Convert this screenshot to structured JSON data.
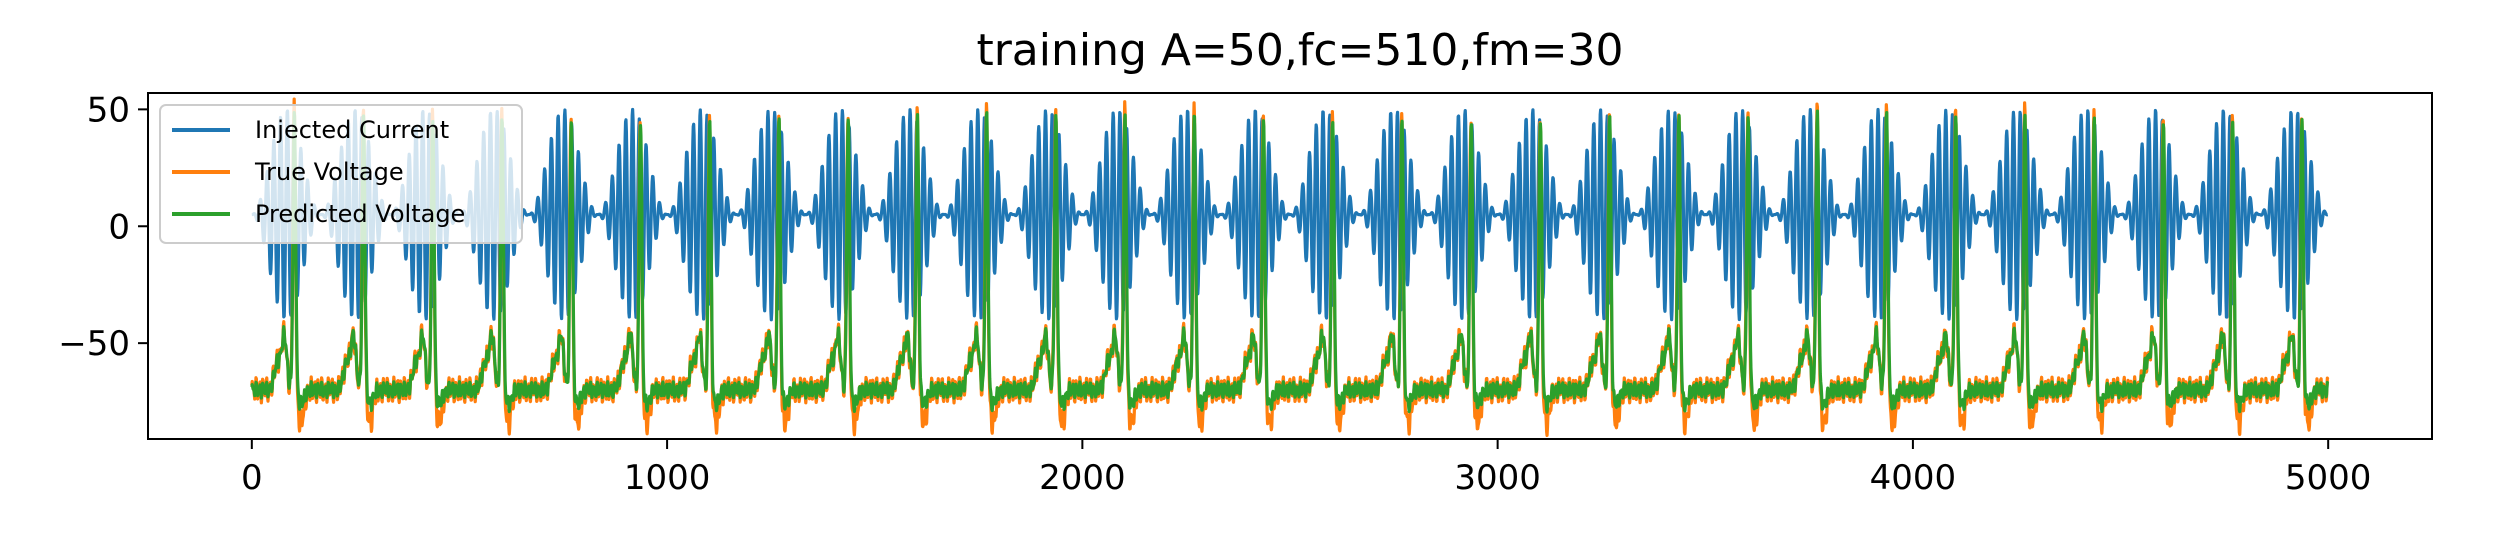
{
  "chart_data": {
    "type": "line",
    "title": "training A=50,fc=510,fm=30",
    "xlabel": "",
    "ylabel": "",
    "xlim": [
      -250,
      5250
    ],
    "ylim": [
      -91,
      57
    ],
    "xticks": [
      0,
      1000,
      2000,
      3000,
      4000,
      5000
    ],
    "xtick_labels": [
      "0",
      "1000",
      "2000",
      "3000",
      "4000",
      "5000"
    ],
    "yticks": [
      50,
      0,
      -50
    ],
    "ytick_labels": [
      "50",
      "0",
      "−50"
    ],
    "grid": false,
    "legend_position": "upper-left",
    "n_points": 5000,
    "signal_params": {
      "amplitude": 50,
      "carrier_period_samples": 16.3,
      "envelope_period_samples": 166.7,
      "current_offset": 5,
      "voltage_baseline": -70,
      "voltage_peak": 48
    },
    "series": [
      {
        "name": "Injected Current",
        "color": "#1f77b4",
        "range": [
          -42,
          50
        ]
      },
      {
        "name": "True Voltage",
        "color": "#ff7f0e",
        "range": [
          -84,
          50
        ]
      },
      {
        "name": "Predicted Voltage",
        "color": "#2ca02c",
        "range": [
          -78,
          47
        ]
      }
    ]
  }
}
